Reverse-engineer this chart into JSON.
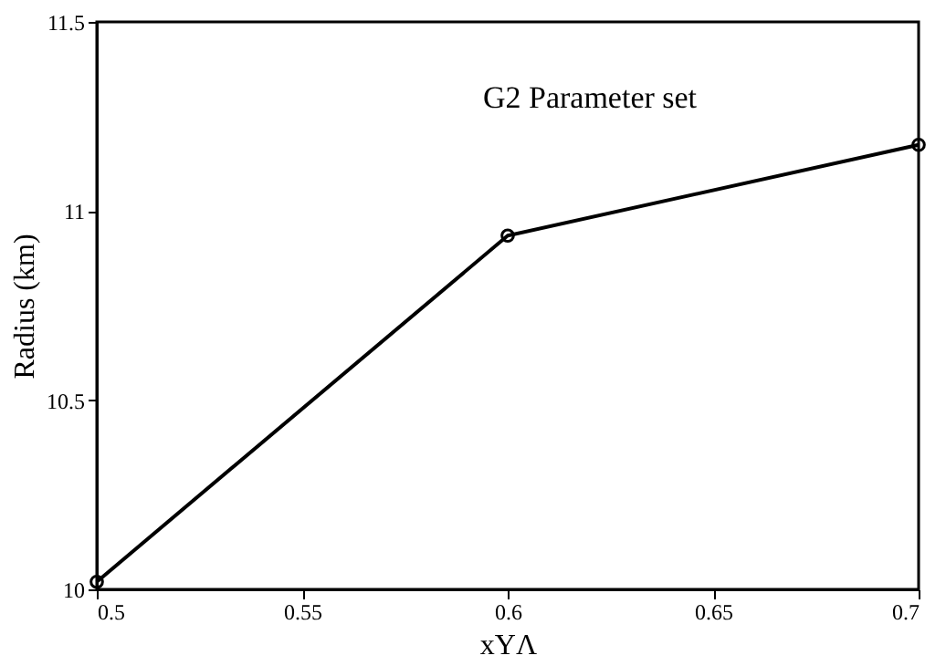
{
  "chart_data": {
    "type": "line",
    "x": [
      0.5,
      0.6,
      0.7
    ],
    "series": [
      {
        "color": "#000000",
        "values": [
          10.02,
          10.935,
          11.175
        ]
      }
    ],
    "xlim": [
      0.5,
      0.7
    ],
    "xticks": [
      0.5,
      0.55,
      0.6,
      0.65,
      0.7
    ],
    "ylim": [
      10,
      11.5
    ],
    "yticks": [
      10,
      10.5,
      11,
      11.5
    ],
    "xlabel": "xYΛ",
    "ylabel": "Radius (km)",
    "annotations": [
      "G2 Parameter set"
    ],
    "marker": "circle",
    "line_style": "solid",
    "grid": false
  }
}
